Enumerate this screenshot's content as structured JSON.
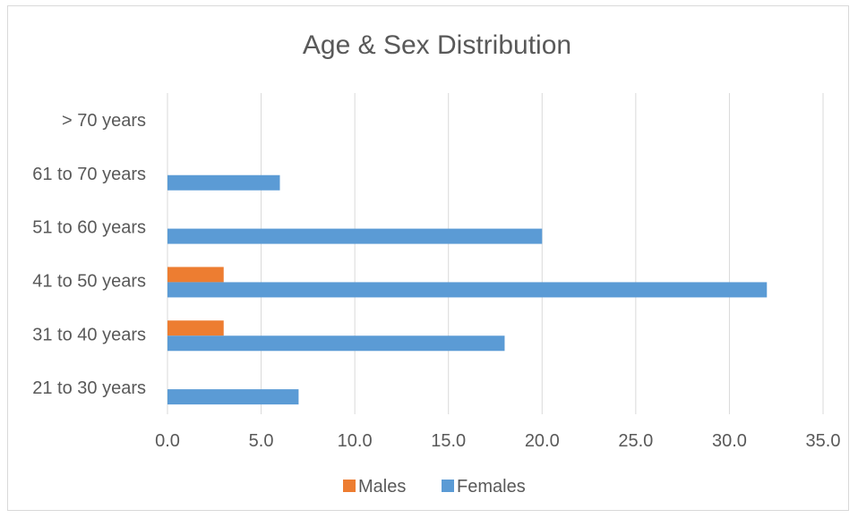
{
  "chart_data": {
    "type": "bar",
    "orientation": "horizontal",
    "title": "Age & Sex Distribution",
    "categories": [
      "21 to 30 years",
      "31 to 40 years",
      "41 to 50 years",
      "51 to 60 years",
      "61 to 70 years",
      "> 70 years"
    ],
    "series": [
      {
        "name": "Males",
        "color": "#ED7D31",
        "values": [
          0,
          3,
          3,
          0,
          0,
          0
        ]
      },
      {
        "name": "Females",
        "color": "#5B9BD5",
        "values": [
          7,
          18,
          32,
          20,
          6,
          0
        ]
      }
    ],
    "xlim": [
      0,
      35
    ],
    "ticks": [
      "0.0",
      "5.0",
      "10.0",
      "15.0",
      "20.0",
      "25.0",
      "30.0",
      "35.0"
    ],
    "grid": true,
    "legend_position": "bottom"
  }
}
